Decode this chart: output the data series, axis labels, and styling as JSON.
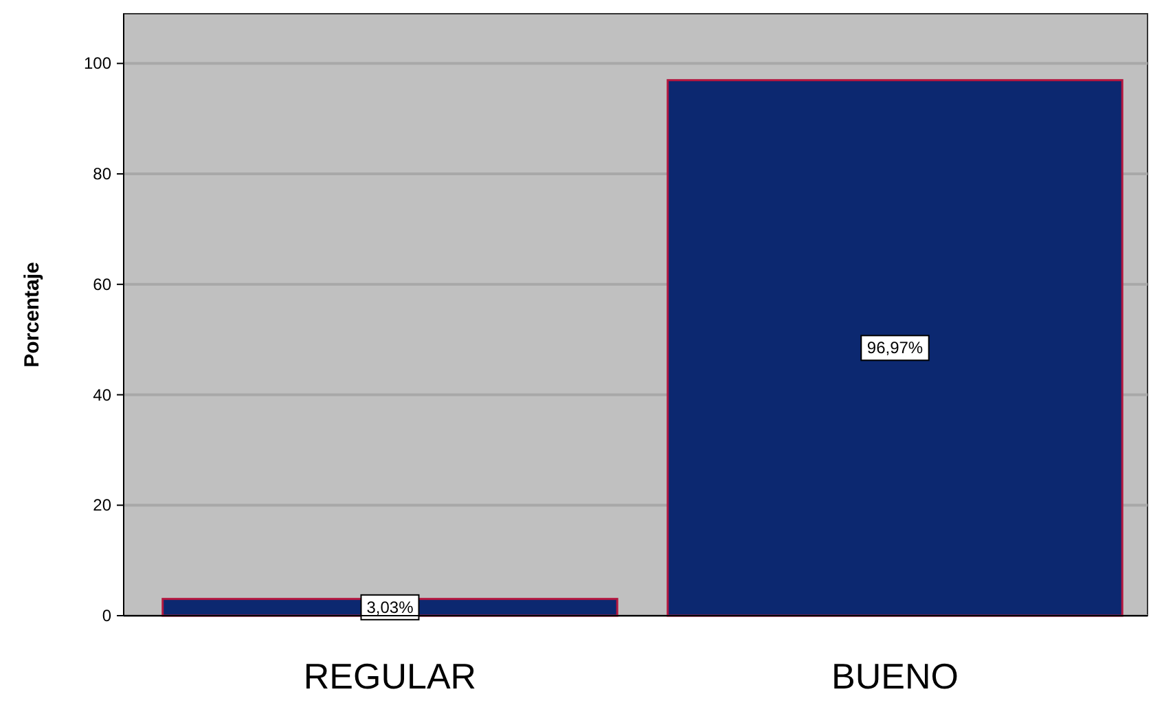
{
  "chart_data": {
    "type": "bar",
    "ylabel": "Porcentaje",
    "categories": [
      "REGULAR",
      "BUENO"
    ],
    "values": [
      3.03,
      96.97
    ],
    "value_labels": [
      "3,03%",
      "96,97%"
    ],
    "color": "#0c2870",
    "ylim": [
      0,
      109
    ],
    "yticks": [
      0,
      20,
      40,
      60,
      80,
      100
    ],
    "grid": "y"
  }
}
